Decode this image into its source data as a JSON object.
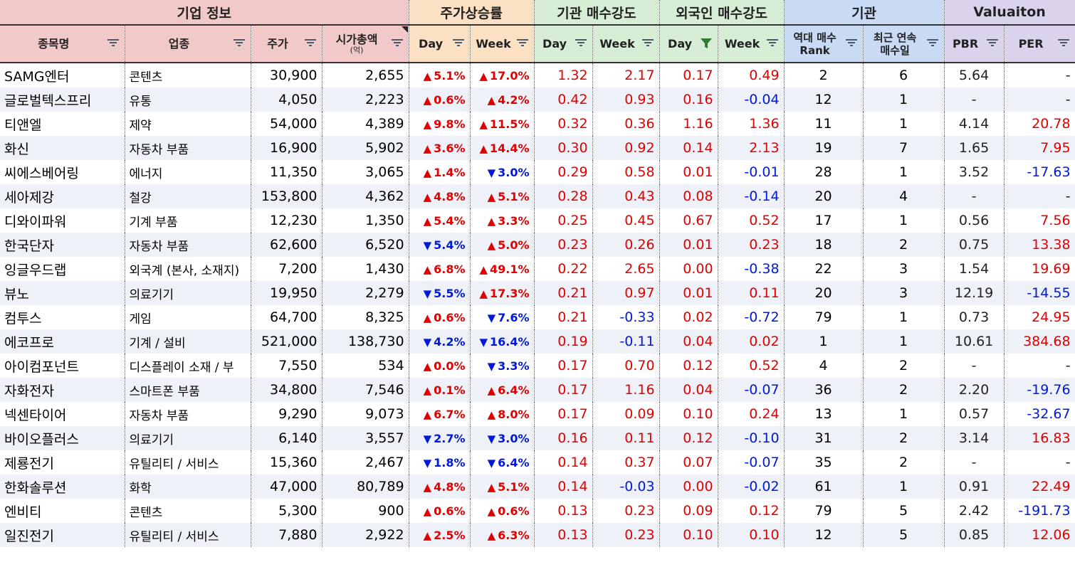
{
  "groups": [
    {
      "label": "기업 정보",
      "span": 4,
      "cls": "g1"
    },
    {
      "label": "주가상승률",
      "span": 2,
      "cls": "g2"
    },
    {
      "label": "기관 매수강도",
      "span": 2,
      "cls": "g3"
    },
    {
      "label": "외국인 매수강도",
      "span": 2,
      "cls": "g4"
    },
    {
      "label": "기관",
      "span": 2,
      "cls": "g5"
    },
    {
      "label": "Valuaiton",
      "span": 2,
      "cls": "g6"
    }
  ],
  "columns": [
    {
      "label": "종목명",
      "sub": "",
      "group": "g1"
    },
    {
      "label": "업종",
      "sub": "",
      "group": "g1"
    },
    {
      "label": "주가",
      "sub": "",
      "group": "g1"
    },
    {
      "label": "시가총액",
      "sub": "(억)",
      "group": "g1",
      "corner": true
    },
    {
      "label": "Day",
      "sub": "",
      "group": "g2"
    },
    {
      "label": "Week",
      "sub": "",
      "group": "g2"
    },
    {
      "label": "Day",
      "sub": "",
      "group": "g3"
    },
    {
      "label": "Week",
      "sub": "",
      "group": "g3"
    },
    {
      "label": "Day",
      "sub": "",
      "group": "g4",
      "filterActive": true
    },
    {
      "label": "Week",
      "sub": "",
      "group": "g4"
    },
    {
      "label": "역대 매수",
      "sub": "Rank",
      "group": "g5",
      "twoLine": true
    },
    {
      "label": "최근 연속",
      "sub": "매수일",
      "group": "g5",
      "twoLine": true
    },
    {
      "label": "PBR",
      "sub": "",
      "group": "g6"
    },
    {
      "label": "PER",
      "sub": "",
      "group": "g6"
    }
  ],
  "filter_icon": "filter-icon",
  "colors": {
    "up": "#e00000",
    "down": "#0018d8",
    "header_company": "#f2c9c9",
    "header_price": "#fbe0c4",
    "header_strength": "#d8edd5",
    "header_inst": "#c9daf5",
    "header_val": "#dbd3ec",
    "row_alt": "#eef1f7"
  },
  "rows": [
    [
      "SAMG엔터",
      "콘텐츠",
      "30,900",
      "2,655",
      "▲",
      "5.1%",
      "▲",
      "17.0%",
      "1.32",
      "2.17",
      "0.17",
      "0.49",
      "2",
      "6",
      "5.64",
      "-"
    ],
    [
      "글로벌텍스프리",
      "유통",
      "4,050",
      "2,223",
      "▲",
      "0.6%",
      "▲",
      "4.2%",
      "0.42",
      "0.93",
      "0.16",
      "-0.04",
      "12",
      "1",
      "-",
      "-"
    ],
    [
      "티앤엘",
      "제약",
      "54,000",
      "4,389",
      "▲",
      "9.8%",
      "▲",
      "11.5%",
      "0.32",
      "0.36",
      "1.16",
      "1.36",
      "11",
      "1",
      "4.14",
      "20.78"
    ],
    [
      "화신",
      "자동차 부품",
      "16,900",
      "5,902",
      "▲",
      "3.6%",
      "▲",
      "14.4%",
      "0.30",
      "0.92",
      "0.14",
      "2.13",
      "19",
      "7",
      "1.65",
      "7.95"
    ],
    [
      "씨에스베어링",
      "에너지",
      "11,350",
      "3,065",
      "▲",
      "1.4%",
      "▼",
      "3.0%",
      "0.29",
      "0.58",
      "0.01",
      "-0.01",
      "28",
      "1",
      "3.52",
      "-17.63"
    ],
    [
      "세아제강",
      "철강",
      "153,800",
      "4,362",
      "▲",
      "4.8%",
      "▲",
      "5.1%",
      "0.28",
      "0.43",
      "0.08",
      "-0.14",
      "20",
      "4",
      "-",
      "-"
    ],
    [
      "디와이파워",
      "기계 부품",
      "12,230",
      "1,350",
      "▲",
      "5.4%",
      "▲",
      "3.3%",
      "0.25",
      "0.45",
      "0.67",
      "0.52",
      "17",
      "1",
      "0.56",
      "7.56"
    ],
    [
      "한국단자",
      "자동차 부품",
      "62,600",
      "6,520",
      "▼",
      "5.4%",
      "▲",
      "5.0%",
      "0.23",
      "0.26",
      "0.01",
      "0.23",
      "18",
      "2",
      "0.75",
      "13.38"
    ],
    [
      "잉글우드랩",
      "외국계 (본사, 소재지)",
      "7,200",
      "1,430",
      "▲",
      "6.8%",
      "▲",
      "49.1%",
      "0.22",
      "2.65",
      "0.00",
      "-0.38",
      "22",
      "3",
      "1.54",
      "19.69"
    ],
    [
      "뷰노",
      "의료기기",
      "19,950",
      "2,279",
      "▼",
      "5.5%",
      "▲",
      "17.3%",
      "0.21",
      "0.97",
      "0.01",
      "0.11",
      "20",
      "3",
      "12.19",
      "-14.55"
    ],
    [
      "컴투스",
      "게임",
      "64,700",
      "8,325",
      "▲",
      "0.6%",
      "▼",
      "7.6%",
      "0.21",
      "-0.33",
      "0.02",
      "-0.72",
      "79",
      "1",
      "0.73",
      "24.95"
    ],
    [
      "에코프로",
      "기계 / 설비",
      "521,000",
      "138,730",
      "▼",
      "4.2%",
      "▼",
      "16.4%",
      "0.19",
      "-0.11",
      "0.04",
      "0.02",
      "1",
      "1",
      "10.61",
      "384.68"
    ],
    [
      "아이컴포넌트",
      "디스플레이 소재 / 부",
      "7,550",
      "534",
      "▲",
      "0.0%",
      "▼",
      "3.3%",
      "0.17",
      "0.70",
      "0.12",
      "0.52",
      "4",
      "2",
      "-",
      "-"
    ],
    [
      "자화전자",
      "스마트폰 부품",
      "34,800",
      "7,546",
      "▲",
      "0.1%",
      "▲",
      "6.4%",
      "0.17",
      "1.16",
      "0.04",
      "-0.07",
      "36",
      "2",
      "2.20",
      "-19.76"
    ],
    [
      "넥센타이어",
      "자동차 부품",
      "9,290",
      "9,073",
      "▲",
      "6.7%",
      "▲",
      "8.0%",
      "0.17",
      "0.09",
      "0.10",
      "0.24",
      "13",
      "1",
      "0.57",
      "-32.67"
    ],
    [
      "바이오플러스",
      "의료기기",
      "6,140",
      "3,557",
      "▼",
      "2.7%",
      "▼",
      "3.0%",
      "0.16",
      "0.11",
      "0.12",
      "-0.10",
      "31",
      "2",
      "3.14",
      "16.83"
    ],
    [
      "제룡전기",
      "유틸리티 / 서비스",
      "15,360",
      "2,467",
      "▼",
      "1.8%",
      "▼",
      "6.4%",
      "0.14",
      "0.37",
      "0.07",
      "-0.07",
      "35",
      "2",
      "-",
      "-"
    ],
    [
      "한화솔루션",
      "화학",
      "47,000",
      "80,789",
      "▲",
      "4.8%",
      "▲",
      "5.1%",
      "0.14",
      "-0.03",
      "0.00",
      "-0.02",
      "61",
      "1",
      "0.91",
      "22.49"
    ],
    [
      "엔비티",
      "콘텐츠",
      "5,300",
      "900",
      "▲",
      "0.6%",
      "▲",
      "0.6%",
      "0.13",
      "0.23",
      "0.09",
      "0.12",
      "79",
      "5",
      "2.42",
      "-191.73"
    ],
    [
      "일진전기",
      "유틸리티 / 서비스",
      "7,880",
      "2,922",
      "▲",
      "2.5%",
      "▲",
      "6.3%",
      "0.13",
      "0.23",
      "0.10",
      "0.10",
      "12",
      "5",
      "0.85",
      "12.06"
    ]
  ]
}
